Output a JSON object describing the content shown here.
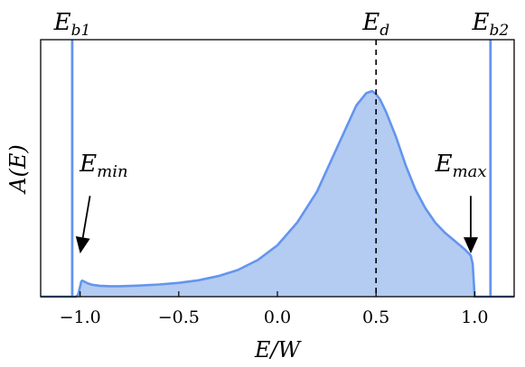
{
  "chart_data": {
    "type": "area",
    "title": "",
    "xlabel": "E/W",
    "ylabel": "A(E)",
    "xlim": [
      -1.2,
      1.2
    ],
    "ylim": [
      0,
      1.0
    ],
    "grid": false,
    "x_ticks": [
      -1.0,
      -0.5,
      0.0,
      0.5,
      1.0
    ],
    "x_tick_labels": [
      "−1.0",
      "−0.5",
      "0.0",
      "0.5",
      "1.0"
    ],
    "series": [
      {
        "x": [
          -1.2,
          -1.02,
          -1.01,
          -1.0,
          -0.995,
          -0.99,
          -0.98,
          -0.96,
          -0.94,
          -0.9,
          -0.85,
          -0.8,
          -0.75,
          -0.7,
          -0.6,
          -0.5,
          -0.4,
          -0.3,
          -0.2,
          -0.1,
          0.0,
          0.1,
          0.2,
          0.3,
          0.4,
          0.45,
          0.48,
          0.5,
          0.52,
          0.55,
          0.6,
          0.65,
          0.7,
          0.75,
          0.8,
          0.85,
          0.9,
          0.95,
          0.98,
          0.99,
          1.0,
          1.2
        ],
        "values": [
          0.0,
          0.0,
          0.01,
          0.05,
          0.072,
          0.078,
          0.074,
          0.064,
          0.058,
          0.053,
          0.051,
          0.051,
          0.052,
          0.054,
          0.059,
          0.067,
          0.08,
          0.1,
          0.13,
          0.178,
          0.25,
          0.36,
          0.51,
          0.72,
          0.93,
          0.99,
          1.0,
          0.985,
          0.96,
          0.9,
          0.78,
          0.64,
          0.52,
          0.43,
          0.36,
          0.31,
          0.27,
          0.23,
          0.2,
          0.16,
          0.0,
          0.0
        ]
      }
    ],
    "vertical_lines": [
      {
        "x": -1.04,
        "label": "E",
        "sub": "b1",
        "style": "solid"
      },
      {
        "x": 1.08,
        "label": "E",
        "sub": "b2",
        "style": "solid"
      },
      {
        "x": 0.5,
        "label": "E",
        "sub": "d",
        "style": "dashed"
      }
    ],
    "annotations": [
      {
        "label": "E",
        "sub": "min",
        "text_x": -0.88,
        "text_y": 0.61,
        "arrow_from": [
          -0.95,
          0.49
        ],
        "arrow_to": [
          -1.0,
          0.21
        ]
      },
      {
        "label": "E",
        "sub": "max",
        "text_x": 0.93,
        "text_y": 0.61,
        "arrow_from": [
          0.98,
          0.49
        ],
        "arrow_to": [
          0.98,
          0.21
        ]
      }
    ],
    "colors": {
      "line": "#6495ed",
      "fill": "#b4cbf2",
      "dashed": "#000000",
      "arrow": "#000000"
    }
  }
}
